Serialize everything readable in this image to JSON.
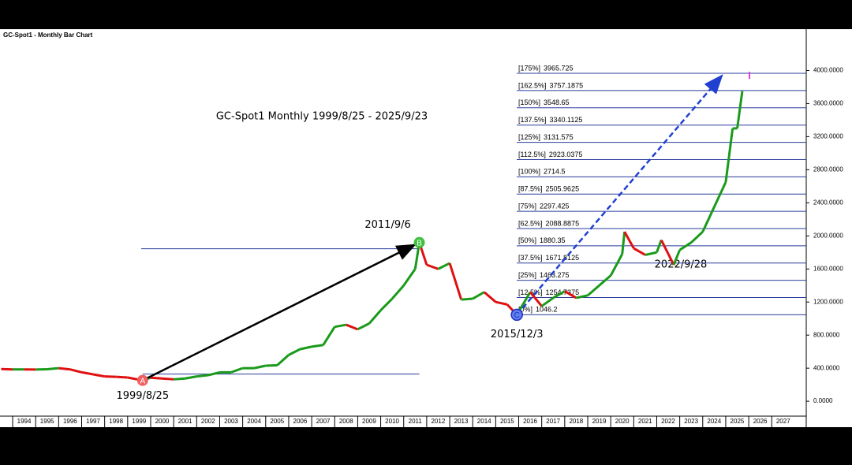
{
  "chart_data": {
    "type": "line",
    "title": "GC-Spot1 - Monthly Bar Chart",
    "annotations": [
      "GC-Spot1 Monthly 1999/8/25 - 2025/9/23",
      "2022/9/28"
    ],
    "x": [
      1993.5,
      1994,
      1994.5,
      1995,
      1995.5,
      1996,
      1996.5,
      1997,
      1997.5,
      1998,
      1998.5,
      1999,
      1999.65,
      2000,
      2000.5,
      2001,
      2001.5,
      2002,
      2002.5,
      2003,
      2003.5,
      2004,
      2004.5,
      2005,
      2005.5,
      2006,
      2006.5,
      2007,
      2007.5,
      2008,
      2008.5,
      2009,
      2009.5,
      2010,
      2010.5,
      2011,
      2011.5,
      2011.68,
      2012,
      2012.5,
      2013,
      2013.5,
      2014,
      2014.5,
      2015,
      2015.5,
      2015.92,
      2016.5,
      2017,
      2017.5,
      2018,
      2018.5,
      2019,
      2019.5,
      2020,
      2020.5,
      2020.6,
      2021,
      2021.5,
      2022,
      2022.2,
      2022.74,
      2023,
      2023.5,
      2024,
      2024.5,
      2025,
      2025.3,
      2025.5,
      2025.72
    ],
    "values": [
      390,
      385,
      385,
      383,
      387,
      400,
      385,
      350,
      325,
      300,
      295,
      287,
      252,
      285,
      275,
      265,
      275,
      300,
      315,
      350,
      350,
      400,
      400,
      430,
      435,
      560,
      630,
      660,
      680,
      900,
      925,
      870,
      940,
      1100,
      1240,
      1400,
      1600,
      1920,
      1650,
      1600,
      1670,
      1230,
      1240,
      1320,
      1200,
      1170,
      1046,
      1320,
      1150,
      1250,
      1330,
      1250,
      1280,
      1400,
      1520,
      1780,
      2050,
      1850,
      1770,
      1800,
      1950,
      1650,
      1830,
      1920,
      2050,
      2350,
      2650,
      3300,
      3300,
      3750
    ],
    "up_color": "#1a9a1a",
    "down_color": "#e01010",
    "pivots": [
      {
        "name": "A",
        "date": "1999/8/25",
        "x": 1999.65,
        "value": 252,
        "color": "#f06060"
      },
      {
        "name": "B",
        "date": "2011/9/6",
        "x": 2011.68,
        "value": 1920,
        "color": "#40c040"
      },
      {
        "name": "C",
        "date": "2015/12/3",
        "x": 2015.92,
        "value": 1046,
        "color": "#6080f0"
      }
    ],
    "fib_levels": [
      {
        "label": "[175%]",
        "value": 3965.725
      },
      {
        "label": "[162.5%]",
        "value": 3757.1875
      },
      {
        "label": "[150%]",
        "value": 3548.65
      },
      {
        "label": "[137.5%]",
        "value": 3340.1125
      },
      {
        "label": "[125%]",
        "value": 3131.575
      },
      {
        "label": "[112.5%]",
        "value": 2923.0375
      },
      {
        "label": "[100%]",
        "value": 2714.5
      },
      {
        "label": "[87.5%]",
        "value": 2505.9625
      },
      {
        "label": "[75%]",
        "value": 2297.425
      },
      {
        "label": "[62.5%]",
        "value": 2088.8875
      },
      {
        "label": "[50%]",
        "value": 1880.35
      },
      {
        "label": "[37.5%]",
        "value": 1671.8125
      },
      {
        "label": "[25%]",
        "value": 1463.275
      },
      {
        "label": "[12.5%]",
        "value": 1254.7375
      },
      {
        "label": "[0%]",
        "value": 1046.2
      }
    ],
    "ylim": [
      -180,
      4500
    ],
    "yticks": [
      {
        "value": 4000,
        "label": "4000.0000"
      },
      {
        "value": 3600,
        "label": "3600.0000"
      },
      {
        "value": 3200,
        "label": "3200.0000"
      },
      {
        "value": 2800,
        "label": "2800.0000"
      },
      {
        "value": 2400,
        "label": "2400.0000"
      },
      {
        "value": 2000,
        "label": "2000.0000"
      },
      {
        "value": 1600,
        "label": "1600.0000"
      },
      {
        "value": 1200,
        "label": "1200.0000"
      },
      {
        "value": 800,
        "label": "800.0000"
      },
      {
        "value": 400,
        "label": "400.0000"
      },
      {
        "value": 0,
        "label": "0.0000"
      }
    ],
    "xlim": [
      1993.45,
      2028.5
    ],
    "xticks": [
      1994,
      1995,
      1996,
      1997,
      1998,
      1999,
      2000,
      2001,
      2002,
      2003,
      2004,
      2005,
      2006,
      2007,
      2008,
      2009,
      2010,
      2011,
      2012,
      2013,
      2014,
      2015,
      2016,
      2017,
      2018,
      2019,
      2020,
      2021,
      2022,
      2023,
      2024,
      2025,
      2026,
      2027
    ]
  }
}
